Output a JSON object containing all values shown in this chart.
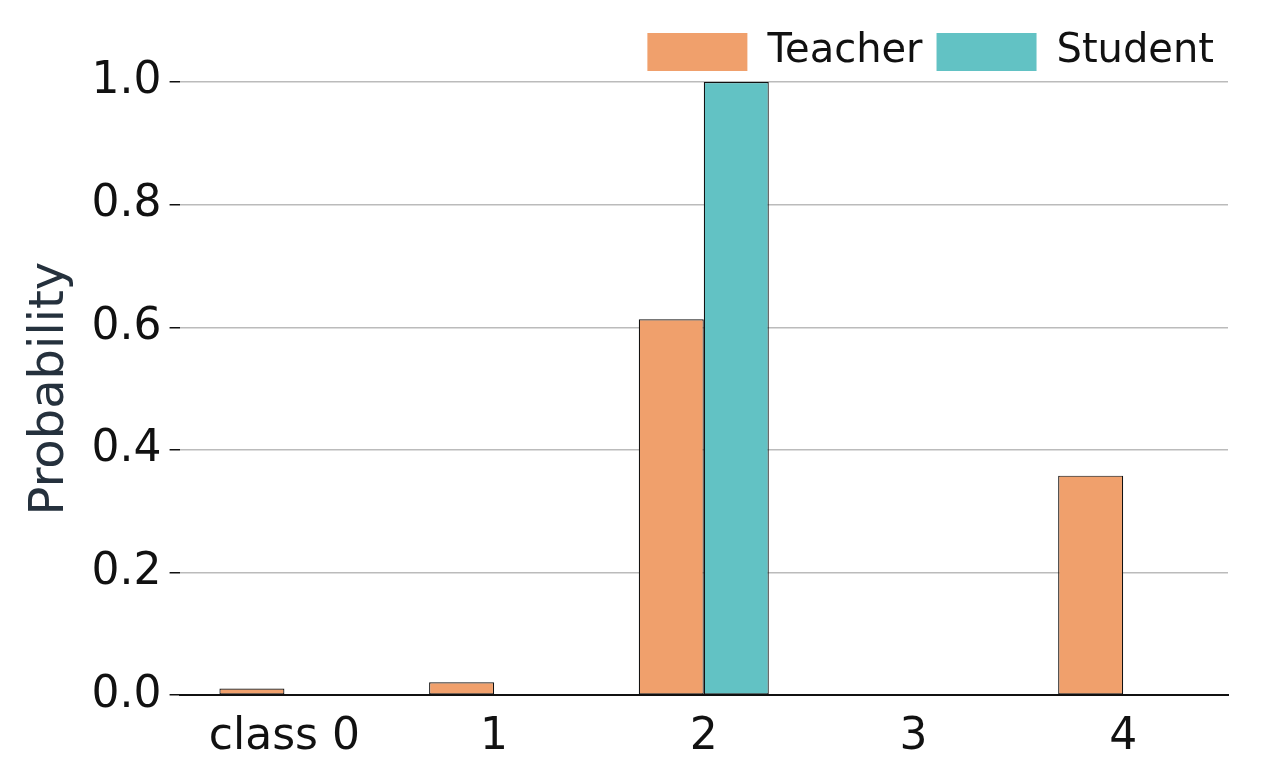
{
  "chart_data": {
    "type": "bar",
    "ylabel": "Probability",
    "categories": [
      "class 0",
      "1",
      "2",
      "3",
      "4"
    ],
    "series": [
      {
        "name": "Teacher",
        "color": "#f0a06c",
        "values": [
          0.011,
          0.021,
          0.613,
          null,
          0.358
        ]
      },
      {
        "name": "Student",
        "color": "#62c2c4",
        "values": [
          0,
          0,
          1.0,
          0,
          0
        ]
      }
    ],
    "ylim": [
      0,
      1.0
    ],
    "yticks": [
      {
        "value": 0,
        "label": "0.0"
      },
      {
        "value": 0.2,
        "label": "0.2"
      },
      {
        "value": 0.4,
        "label": "0.4"
      },
      {
        "value": 0.6,
        "label": "0.6"
      },
      {
        "value": 0.8,
        "label": "0.8"
      },
      {
        "value": 1.0,
        "label": "1.0"
      }
    ],
    "grid": "y",
    "legend": "top right"
  }
}
